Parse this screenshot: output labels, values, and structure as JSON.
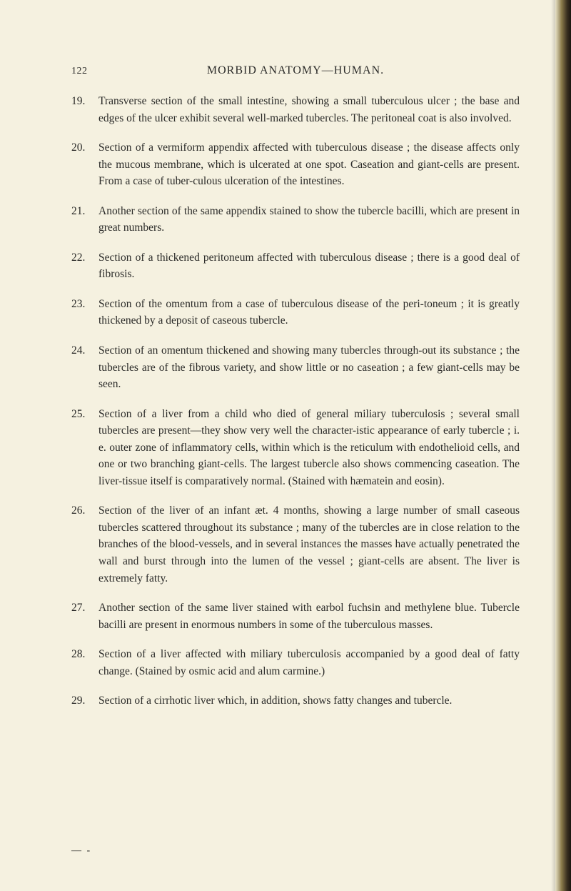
{
  "page_number": "122",
  "header_title": "MORBID ANATOMY—HUMAN.",
  "entries": [
    {
      "num": "19.",
      "text": "Transverse section of the small intestine, showing a small tuberculous ulcer ; the base and edges of the ulcer exhibit several well-marked tubercles. The peritoneal coat is also involved."
    },
    {
      "num": "20.",
      "text": "Section of a vermiform appendix affected with tuberculous disease ; the disease affects only the mucous membrane, which is ulcerated at one spot. Caseation and giant-cells are present. From a case of tuber-culous ulceration of the intestines."
    },
    {
      "num": "21.",
      "text": "Another section of the same appendix stained to show the tubercle bacilli, which are present in great numbers."
    },
    {
      "num": "22.",
      "text": "Section of a thickened peritoneum affected with tuberculous disease ; there is a good deal of fibrosis."
    },
    {
      "num": "23.",
      "text": "Section of the omentum from a case of tuberculous disease of the peri-toneum ; it is greatly thickened by a deposit of caseous tubercle."
    },
    {
      "num": "24.",
      "text": "Section of an omentum thickened and showing many tubercles through-out its substance ; the tubercles are of the fibrous variety, and show little or no caseation ; a few giant-cells may be seen."
    },
    {
      "num": "25.",
      "text": "Section of a liver from a child who died of general miliary tuberculosis ; several small tubercles are present—they show very well the character-istic appearance of early tubercle ; i. e. outer zone of inflammatory cells, within which is the reticulum with endothelioid cells, and one or two branching giant-cells. The largest tubercle also shows commencing caseation. The liver-tissue itself is comparatively normal. (Stained with hæmatein and eosin)."
    },
    {
      "num": "26.",
      "text": "Section of the liver of an infant æt. 4 months, showing a large number of small caseous tubercles scattered throughout its substance ; many of the tubercles are in close relation to the branches of the blood-vessels, and in several instances the masses have actually penetrated the wall and burst through into the lumen of the vessel ; giant-cells are absent. The liver is extremely fatty."
    },
    {
      "num": "27.",
      "text": "Another section of the same liver stained with earbol fuchsin and methylene blue. Tubercle bacilli are present in enormous numbers in some of the tuberculous masses."
    },
    {
      "num": "28.",
      "text": "Section of a liver affected with miliary tuberculosis accompanied by a good deal of fatty change. (Stained by osmic acid and alum carmine.)"
    },
    {
      "num": "29.",
      "text": "Section of a cirrhotic liver which, in addition, shows fatty changes and tubercle."
    }
  ],
  "footer_mark": "— -"
}
